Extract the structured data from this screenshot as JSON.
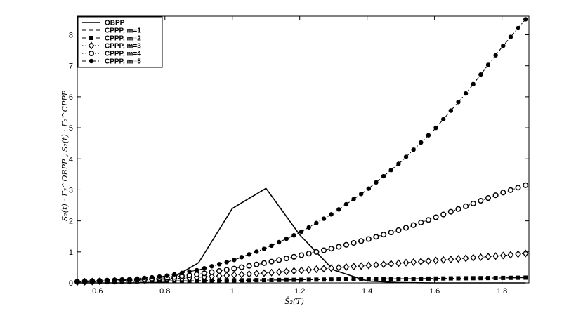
{
  "chart_data": {
    "type": "line",
    "title": "",
    "xlabel": "Ŝ₂(T)",
    "ylabel": "S₂(t) · Γ₂^OBPP , S₂(t) · Γ₂^CPPP",
    "xlim": [
      0.54,
      1.88
    ],
    "ylim": [
      0,
      8.6
    ],
    "xticks": [
      0.6,
      0.8,
      1.0,
      1.2,
      1.4,
      1.6,
      1.8
    ],
    "xtick_labels": [
      "0.6",
      "0.8",
      "1",
      "1.2",
      "1.4",
      "1.6",
      "1.8"
    ],
    "yticks": [
      0,
      1,
      2,
      3,
      4,
      5,
      6,
      7,
      8
    ],
    "ytick_labels": [
      "0",
      "1",
      "2",
      "3",
      "4",
      "5",
      "6",
      "7",
      "8"
    ],
    "grid": false,
    "legend_position": "top-left",
    "x": [
      0.54,
      0.6,
      0.7,
      0.8,
      0.9,
      1.0,
      1.1,
      1.2,
      1.3,
      1.4,
      1.5,
      1.6,
      1.7,
      1.8,
      1.87
    ],
    "series": [
      {
        "name": "OBPP",
        "line": "solid",
        "marker": "none",
        "values": [
          0.0,
          0.0,
          0.0,
          0.02,
          0.65,
          2.4,
          3.05,
          1.55,
          0.42,
          0.06,
          0.01,
          0.0,
          0.0,
          0.0,
          0.0
        ]
      },
      {
        "name": "CPPP, m=1",
        "line": "dashed",
        "marker": "none",
        "values": [
          0.03,
          0.04,
          0.05,
          0.06,
          0.07,
          0.08,
          0.09,
          0.1,
          0.11,
          0.12,
          0.13,
          0.14,
          0.15,
          0.16,
          0.17
        ]
      },
      {
        "name": "CPPP, m=2",
        "line": "dashed",
        "marker": "square",
        "values": [
          0.03,
          0.04,
          0.05,
          0.06,
          0.07,
          0.08,
          0.09,
          0.1,
          0.11,
          0.12,
          0.13,
          0.14,
          0.15,
          0.16,
          0.17
        ]
      },
      {
        "name": "CPPP, m=3",
        "line": "dotted",
        "marker": "diamond",
        "values": [
          0.03,
          0.05,
          0.08,
          0.12,
          0.18,
          0.25,
          0.32,
          0.4,
          0.48,
          0.56,
          0.64,
          0.72,
          0.8,
          0.88,
          0.95
        ]
      },
      {
        "name": "CPPP, m=4",
        "line": "dotted",
        "marker": "circle",
        "values": [
          0.04,
          0.06,
          0.1,
          0.16,
          0.28,
          0.45,
          0.65,
          0.88,
          1.12,
          1.4,
          1.72,
          2.1,
          2.5,
          2.9,
          3.15
        ]
      },
      {
        "name": "CPPP, m=5",
        "line": "dashdot",
        "marker": "dot",
        "values": [
          0.05,
          0.07,
          0.12,
          0.22,
          0.42,
          0.72,
          1.12,
          1.62,
          2.25,
          3.0,
          3.9,
          4.95,
          6.2,
          7.6,
          8.5
        ]
      }
    ]
  }
}
